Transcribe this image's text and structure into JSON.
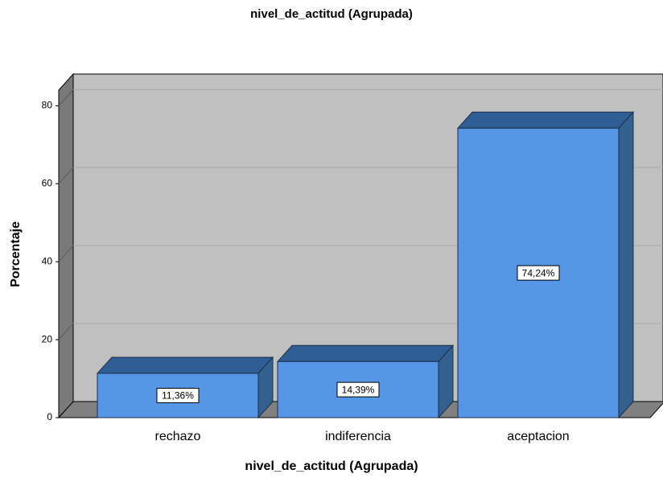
{
  "chart_data": {
    "type": "bar3d",
    "title": "nivel_de_actitud (Agrupada)",
    "x_label": "nivel_de_actitud (Agrupada)",
    "y_label": "Porcentaje",
    "categories": [
      "rechazo",
      "indiferencia",
      "aceptacion"
    ],
    "values": [
      11.36,
      14.39,
      74.24
    ],
    "value_labels": [
      "11,36%",
      "14,39%",
      "74,24%"
    ],
    "color": "#5596e6",
    "ylim": [
      0,
      84
    ],
    "yticks": [
      0,
      20,
      40,
      60,
      80
    ],
    "grid": true
  }
}
